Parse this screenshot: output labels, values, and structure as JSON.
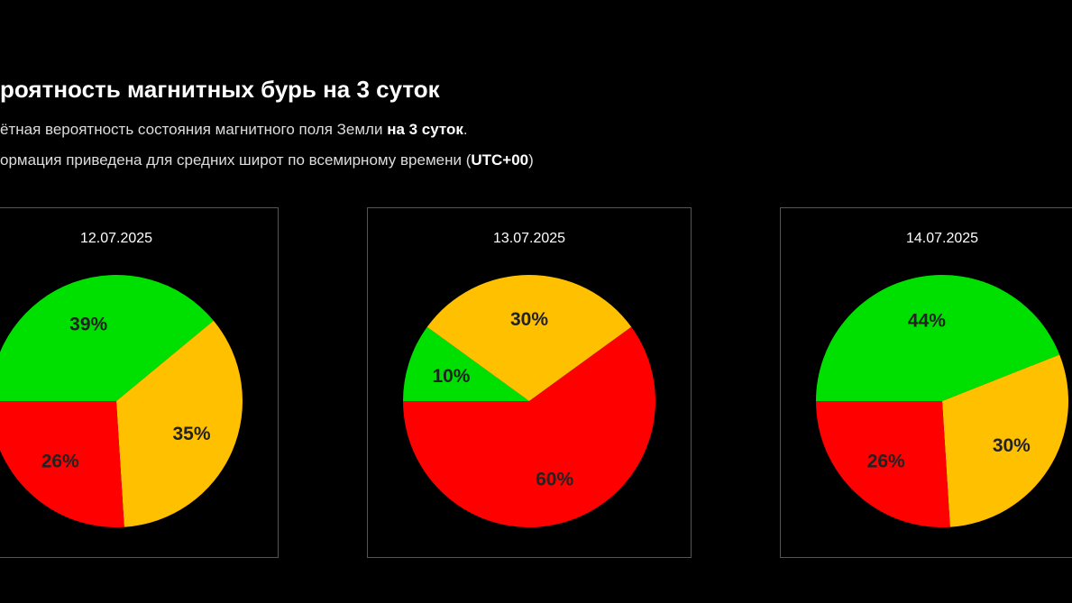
{
  "header": {
    "title": "роятность магнитных бурь на 3 суток",
    "line1": [
      "ётная вероятность состояния магнитного поля Земли ",
      "на 3 суток",
      "."
    ],
    "line2": [
      "ормация приведена для средних широт по всемирному времени (",
      "UTC+00",
      ")"
    ]
  },
  "chart_data": [
    {
      "type": "pie",
      "title": "12.07.2025",
      "values": [
        39,
        35,
        26
      ],
      "value_labels": [
        "39%",
        "35%",
        "26%"
      ],
      "colors": [
        "#00e000",
        "#ffc000",
        "#ff0000"
      ]
    },
    {
      "type": "pie",
      "title": "13.07.2025",
      "values": [
        10,
        30,
        60
      ],
      "value_labels": [
        "10%",
        "30%",
        "60%"
      ],
      "colors": [
        "#00e000",
        "#ffc000",
        "#ff0000"
      ]
    },
    {
      "type": "pie",
      "title": "14.07.2025",
      "values": [
        44,
        30,
        26
      ],
      "value_labels": [
        "44%",
        "30%",
        "26%"
      ],
      "colors": [
        "#00e000",
        "#ffc000",
        "#ff0000"
      ]
    }
  ]
}
